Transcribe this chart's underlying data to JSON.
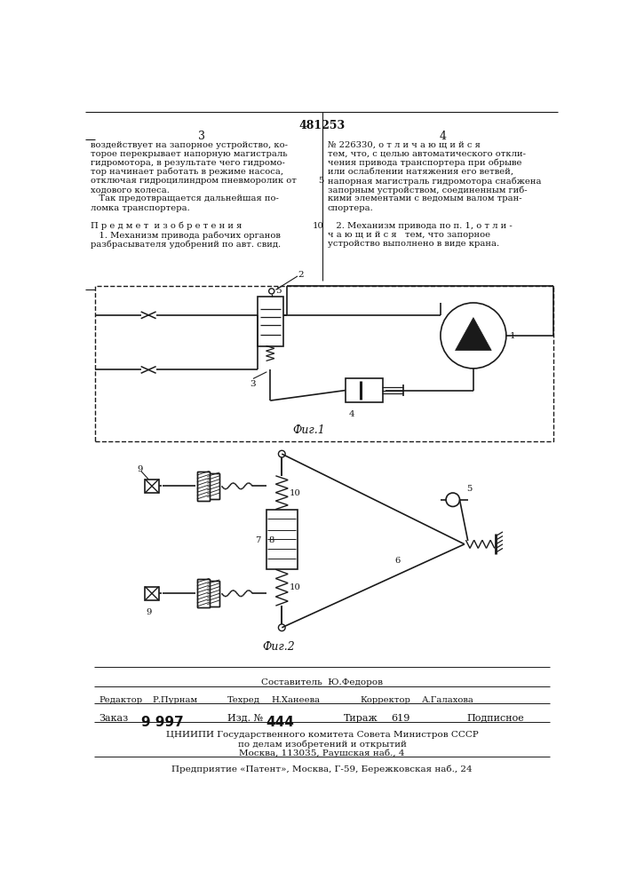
{
  "patent_number": "481253",
  "page_left": "3",
  "page_right": "4",
  "bg_color": "#ffffff",
  "line_color": "#1a1a1a",
  "text_color": "#111111",
  "fig1_label": "Фиг.1",
  "fig2_label": "Фиг.2",
  "footer_composer": "Составитель  Ю.Федоров",
  "footer_editor_label": "Редактор",
  "footer_editor": "Р.Пурнам",
  "footer_tech_label": "Техред",
  "footer_tech": "Н.Ханеева",
  "footer_corr_label": "Корректор",
  "footer_corr": "А.Галахова",
  "footer_order_label": "Заказ",
  "footer_order": "9 997",
  "footer_izd_label": "Изд. №",
  "footer_izd": "444",
  "footer_tirazh_label": "Тираж",
  "footer_tirazh": "619",
  "footer_podp": "Подписное",
  "footer_org1": "ЦНИИПИ Государственного комитета Совета Министров СССР",
  "footer_org2": "по делам изобретений и открытий",
  "footer_org3": "Москва, 113035, Раушская наб., 4",
  "footer_org4": "Предприятие «Патент», Москва, Г-59, Бережковская наб., 24"
}
